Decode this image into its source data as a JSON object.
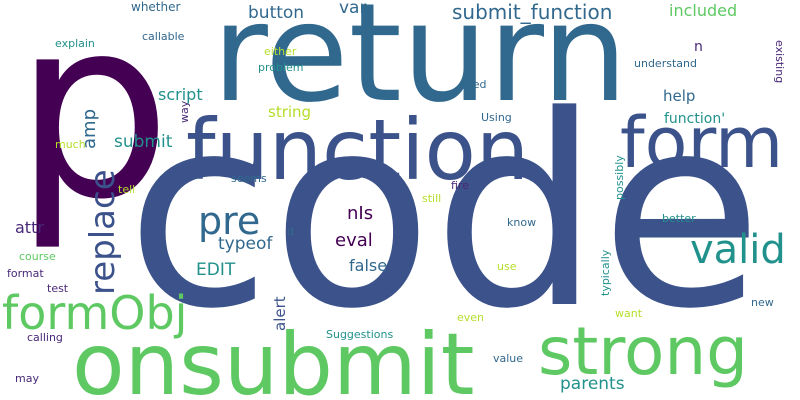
{
  "words": [
    {
      "text": "p",
      "color": "#440154"
    },
    {
      "text": "code",
      "color": "#3b528b"
    },
    {
      "text": "return",
      "color": "#31688e"
    },
    {
      "text": "onsubmit",
      "color": "#5ec962"
    },
    {
      "text": "function",
      "color": "#3b528b"
    },
    {
      "text": "strong",
      "color": "#5ec962"
    },
    {
      "text": "form",
      "color": "#3b528b"
    },
    {
      "text": "formObj",
      "color": "#5ec962"
    },
    {
      "text": "replace",
      "color": "#3b528b"
    },
    {
      "text": "valid",
      "color": "#21918c"
    },
    {
      "text": "pre",
      "color": "#31688e"
    },
    {
      "text": "submit_function",
      "color": "#31688e"
    },
    {
      "text": "button",
      "color": "#31688e"
    },
    {
      "text": "amp",
      "color": "#31688e"
    },
    {
      "text": "script",
      "color": "#21918c"
    },
    {
      "text": "submit",
      "color": "#21918c"
    },
    {
      "text": "typeof",
      "color": "#31688e"
    },
    {
      "text": "EDIT",
      "color": "#21918c"
    },
    {
      "text": "eval",
      "color": "#440154"
    },
    {
      "text": "nIs",
      "color": "#440154"
    },
    {
      "text": "attr",
      "color": "#482878"
    },
    {
      "text": "false",
      "color": "#31688e"
    },
    {
      "text": "parents",
      "color": "#21918c"
    },
    {
      "text": "included",
      "color": "#5ec962"
    },
    {
      "text": "function'",
      "color": "#21918c"
    },
    {
      "text": "help",
      "color": "#31688e"
    },
    {
      "text": "var",
      "color": "#31688e"
    },
    {
      "text": "string",
      "color": "#b5de2b"
    },
    {
      "text": "alert",
      "color": "#3b528b"
    },
    {
      "text": "n",
      "color": "#482878"
    },
    {
      "text": "whether",
      "color": "#31688e"
    },
    {
      "text": "explain",
      "color": "#21918c"
    },
    {
      "text": "callable",
      "color": "#31688e"
    },
    {
      "text": "either",
      "color": "#b5de2b"
    },
    {
      "text": "problem",
      "color": "#21918c"
    },
    {
      "text": "understand",
      "color": "#31688e"
    },
    {
      "text": "existing",
      "color": "#482878"
    },
    {
      "text": "need",
      "color": "#31688e"
    },
    {
      "text": "way",
      "color": "#482878"
    },
    {
      "text": "Using",
      "color": "#31688e"
    },
    {
      "text": "much",
      "color": "#b5de2b"
    },
    {
      "text": "tell",
      "color": "#b5de2b"
    },
    {
      "text": "seems",
      "color": "#31688e"
    },
    {
      "text": "still",
      "color": "#b5de2b"
    },
    {
      "text": "fire",
      "color": "#482878"
    },
    {
      "text": "possibly",
      "color": "#21918c"
    },
    {
      "text": "better",
      "color": "#21918c"
    },
    {
      "text": "know",
      "color": "#31688e"
    },
    {
      "text": "d",
      "color": "#31688e"
    },
    {
      "text": "course",
      "color": "#5ec962"
    },
    {
      "text": "format",
      "color": "#482878"
    },
    {
      "text": "test",
      "color": "#482878"
    },
    {
      "text": "use",
      "color": "#b5de2b"
    },
    {
      "text": "typically",
      "color": "#21918c"
    },
    {
      "text": "new",
      "color": "#31688e"
    },
    {
      "text": "want",
      "color": "#b5de2b"
    },
    {
      "text": "even",
      "color": "#b5de2b"
    },
    {
      "text": "Suggestions",
      "color": "#21918c"
    },
    {
      "text": "calling",
      "color": "#482878"
    },
    {
      "text": "value",
      "color": "#31688e"
    },
    {
      "text": "may",
      "color": "#482878"
    }
  ]
}
